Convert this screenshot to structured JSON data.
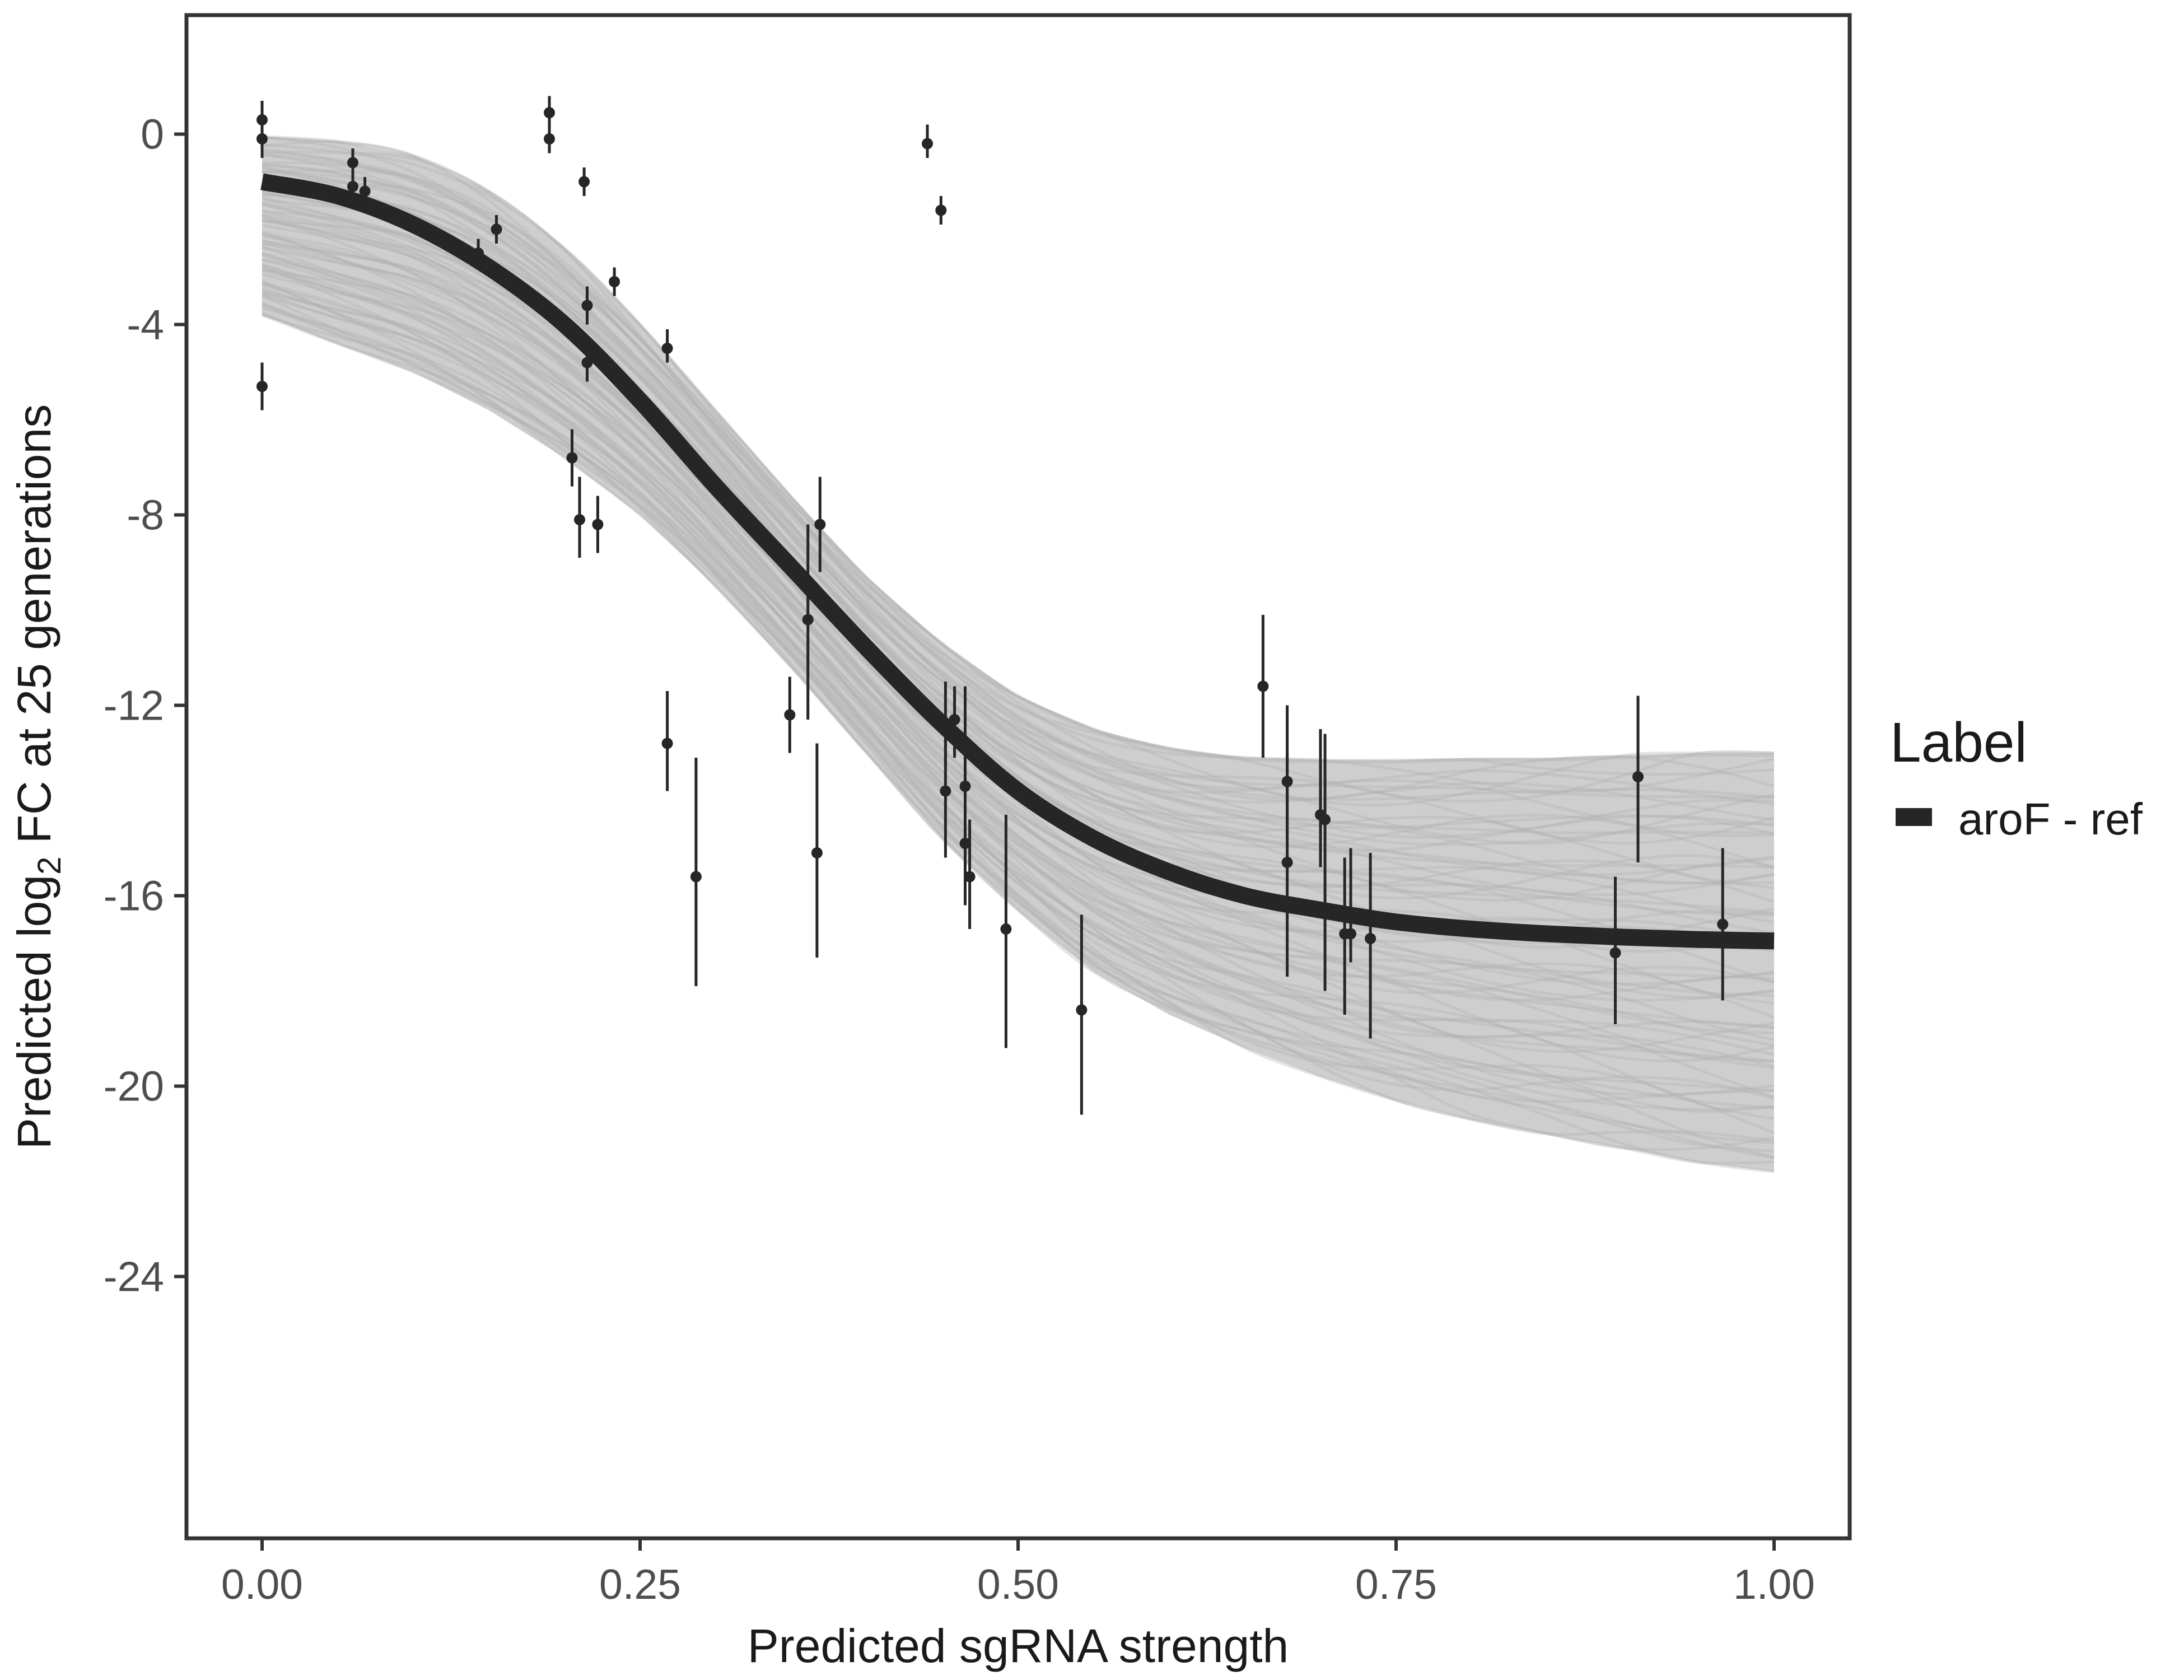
{
  "chart_data": {
    "type": "line",
    "title": "",
    "xlabel": "Predicted sgRNA strength",
    "ylabel_prefix": "Predicted  log",
    "ylabel_subscript": "2",
    "ylabel_suffix": " FC at 25 generations",
    "xlim": [
      -0.05,
      1.05
    ],
    "ylim": [
      -29.5,
      2.5
    ],
    "x_ticks": [
      0,
      0.25,
      0.5,
      0.75,
      1
    ],
    "x_tick_labels": [
      "0.00",
      "0.25",
      "0.50",
      "0.75",
      "1.00"
    ],
    "y_ticks": [
      0,
      -4,
      -8,
      -12,
      -16,
      -20,
      -24
    ],
    "y_tick_labels": [
      "0",
      "-4",
      "-8",
      "-12",
      "-16",
      "-20",
      "-24"
    ],
    "grid": false,
    "legend": {
      "title": "Label",
      "position": "right",
      "entries": [
        {
          "label": "aroF - ref",
          "color": "#262626"
        }
      ]
    },
    "fit_curve": {
      "name": "aroF - ref",
      "color": "#262626",
      "x": [
        0,
        0.05,
        0.1,
        0.15,
        0.2,
        0.25,
        0.3,
        0.35,
        0.4,
        0.45,
        0.5,
        0.55,
        0.6,
        0.65,
        0.7,
        0.75,
        0.8,
        0.85,
        0.9,
        0.95,
        1.0
      ],
      "y": [
        -1.0,
        -1.3,
        -1.9,
        -2.8,
        -4.0,
        -5.6,
        -7.4,
        -9.1,
        -10.8,
        -12.4,
        -13.8,
        -14.8,
        -15.5,
        -16.0,
        -16.3,
        -16.55,
        -16.7,
        -16.8,
        -16.87,
        -16.92,
        -16.95
      ]
    },
    "posterior_band": {
      "color": "#a6a6a6",
      "upper": [
        -0.05,
        -0.15,
        -0.45,
        -1.2,
        -2.4,
        -4.0,
        -5.8,
        -7.6,
        -9.3,
        -10.7,
        -11.8,
        -12.5,
        -12.9,
        -13.1,
        -13.15,
        -13.15,
        -13.1,
        -13.1,
        -13.05,
        -13.0,
        -13.0
      ],
      "lower": [
        -3.8,
        -4.4,
        -5.0,
        -5.8,
        -6.8,
        -8.0,
        -9.5,
        -11.2,
        -13.0,
        -14.8,
        -16.3,
        -17.6,
        -18.5,
        -19.2,
        -19.8,
        -20.3,
        -20.7,
        -21.0,
        -21.3,
        -21.6,
        -21.8
      ],
      "draws": 80
    },
    "points": [
      {
        "x": 0.0,
        "y": 0.3,
        "lo": -0.2,
        "hi": 0.7
      },
      {
        "x": 0.0,
        "y": -0.1,
        "lo": -0.5,
        "hi": 0.3
      },
      {
        "x": 0.0,
        "y": -5.3,
        "lo": -5.8,
        "hi": -4.8
      },
      {
        "x": 0.06,
        "y": -0.6,
        "lo": -1.0,
        "hi": -0.3
      },
      {
        "x": 0.06,
        "y": -1.1,
        "lo": -1.5,
        "hi": -0.8
      },
      {
        "x": 0.068,
        "y": -1.2,
        "lo": -1.5,
        "hi": -0.9
      },
      {
        "x": 0.143,
        "y": -2.5,
        "lo": -2.8,
        "hi": -2.2
      },
      {
        "x": 0.155,
        "y": -2.0,
        "lo": -2.3,
        "hi": -1.7
      },
      {
        "x": 0.19,
        "y": 0.45,
        "lo": 0.05,
        "hi": 0.8
      },
      {
        "x": 0.19,
        "y": -0.1,
        "lo": -0.4,
        "hi": 0.2
      },
      {
        "x": 0.205,
        "y": -6.8,
        "lo": -7.4,
        "hi": -6.2
      },
      {
        "x": 0.21,
        "y": -8.1,
        "lo": -8.9,
        "hi": -7.2
      },
      {
        "x": 0.213,
        "y": -1.0,
        "lo": -1.3,
        "hi": -0.7
      },
      {
        "x": 0.215,
        "y": -3.6,
        "lo": -4.0,
        "hi": -3.2
      },
      {
        "x": 0.215,
        "y": -4.8,
        "lo": -5.2,
        "hi": -4.3
      },
      {
        "x": 0.222,
        "y": -8.2,
        "lo": -8.8,
        "hi": -7.6
      },
      {
        "x": 0.233,
        "y": -3.1,
        "lo": -3.4,
        "hi": -2.8
      },
      {
        "x": 0.268,
        "y": -4.5,
        "lo": -4.8,
        "hi": -4.1
      },
      {
        "x": 0.268,
        "y": -12.8,
        "lo": -13.8,
        "hi": -11.7
      },
      {
        "x": 0.287,
        "y": -15.6,
        "lo": -17.9,
        "hi": -13.1
      },
      {
        "x": 0.349,
        "y": -12.2,
        "lo": -13.0,
        "hi": -11.4
      },
      {
        "x": 0.361,
        "y": -10.2,
        "lo": -12.3,
        "hi": -8.2
      },
      {
        "x": 0.367,
        "y": -15.1,
        "lo": -17.3,
        "hi": -12.8
      },
      {
        "x": 0.369,
        "y": -8.2,
        "lo": -9.2,
        "hi": -7.2
      },
      {
        "x": 0.44,
        "y": -0.2,
        "lo": -0.5,
        "hi": 0.2
      },
      {
        "x": 0.449,
        "y": -1.6,
        "lo": -1.9,
        "hi": -1.3
      },
      {
        "x": 0.452,
        "y": -12.4,
        "lo": -13.3,
        "hi": -11.5
      },
      {
        "x": 0.452,
        "y": -13.8,
        "lo": -15.2,
        "hi": -12.4
      },
      {
        "x": 0.458,
        "y": -12.3,
        "lo": -13.1,
        "hi": -11.6
      },
      {
        "x": 0.465,
        "y": -13.7,
        "lo": -15.8,
        "hi": -11.6
      },
      {
        "x": 0.465,
        "y": -14.9,
        "lo": -16.2,
        "hi": -13.7
      },
      {
        "x": 0.468,
        "y": -15.6,
        "lo": -16.7,
        "hi": -14.4
      },
      {
        "x": 0.492,
        "y": -16.7,
        "lo": -19.2,
        "hi": -14.3
      },
      {
        "x": 0.542,
        "y": -18.4,
        "lo": -20.6,
        "hi": -16.4
      },
      {
        "x": 0.662,
        "y": -11.6,
        "lo": -13.1,
        "hi": -10.1
      },
      {
        "x": 0.678,
        "y": -13.6,
        "lo": -14.8,
        "hi": -12.0
      },
      {
        "x": 0.678,
        "y": -15.3,
        "lo": -17.7,
        "hi": -13.0
      },
      {
        "x": 0.7,
        "y": -14.3,
        "lo": -15.4,
        "hi": -12.5
      },
      {
        "x": 0.703,
        "y": -14.4,
        "lo": -18.0,
        "hi": -12.6
      },
      {
        "x": 0.716,
        "y": -16.8,
        "lo": -18.5,
        "hi": -15.2
      },
      {
        "x": 0.72,
        "y": -16.8,
        "lo": -17.4,
        "hi": -15.0
      },
      {
        "x": 0.733,
        "y": -16.9,
        "lo": -19.0,
        "hi": -15.1
      },
      {
        "x": 0.895,
        "y": -17.2,
        "lo": -18.7,
        "hi": -15.6
      },
      {
        "x": 0.91,
        "y": -13.5,
        "lo": -15.3,
        "hi": -11.8
      },
      {
        "x": 0.966,
        "y": -16.6,
        "lo": -18.2,
        "hi": -15.0
      }
    ]
  }
}
